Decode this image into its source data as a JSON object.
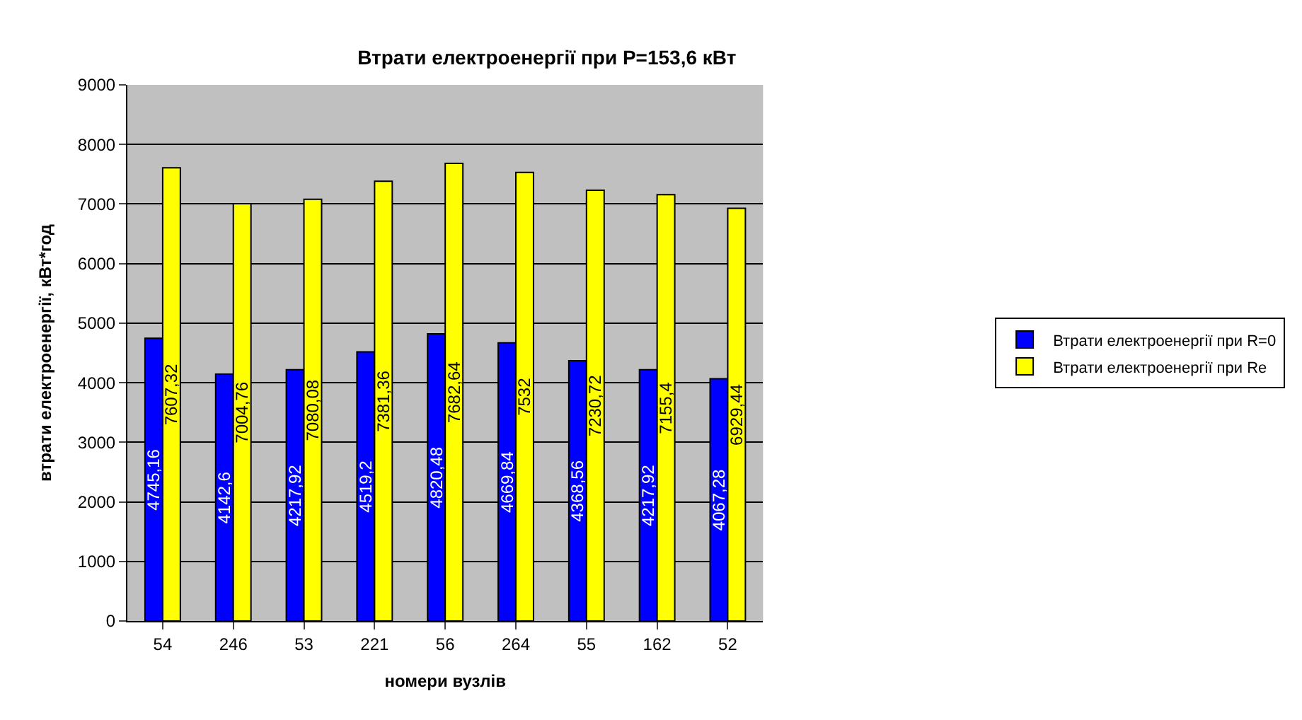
{
  "chart_data": {
    "type": "bar",
    "title": "Втрати електроенергії при P=153,6 кВт",
    "xlabel": "номери вузлів",
    "ylabel": "втрати електроенергії, кВт*год",
    "categories": [
      "54",
      "246",
      "53",
      "221",
      "56",
      "264",
      "55",
      "162",
      "52"
    ],
    "series": [
      {
        "name": "Втрати електроенергії при R=0",
        "color": "#0000ff",
        "values": [
          4745.16,
          4142.6,
          4217.92,
          4519.2,
          4820.48,
          4669.84,
          4368.56,
          4217.92,
          4067.28
        ],
        "value_labels": [
          "4745,16",
          "4142,6",
          "4217,92",
          "4519,2",
          "4820,48",
          "4669,84",
          "4368,56",
          "4217,92",
          "4067,28"
        ]
      },
      {
        "name": "Втрати електроенергії при Re",
        "color": "#ffff00",
        "values": [
          7607.32,
          7004.76,
          7080.08,
          7381.36,
          7682.64,
          7532,
          7230.72,
          7155.4,
          6929.44
        ],
        "value_labels": [
          "7607,32",
          "7004,76",
          "7080,08",
          "7381,36",
          "7682,64",
          "7532",
          "7230,72",
          "7155,4",
          "6929,44"
        ]
      }
    ],
    "ylim": [
      0,
      9000
    ],
    "yticks": [
      0,
      1000,
      2000,
      3000,
      4000,
      5000,
      6000,
      7000,
      8000,
      9000
    ],
    "grid": "y",
    "legend": "right"
  }
}
